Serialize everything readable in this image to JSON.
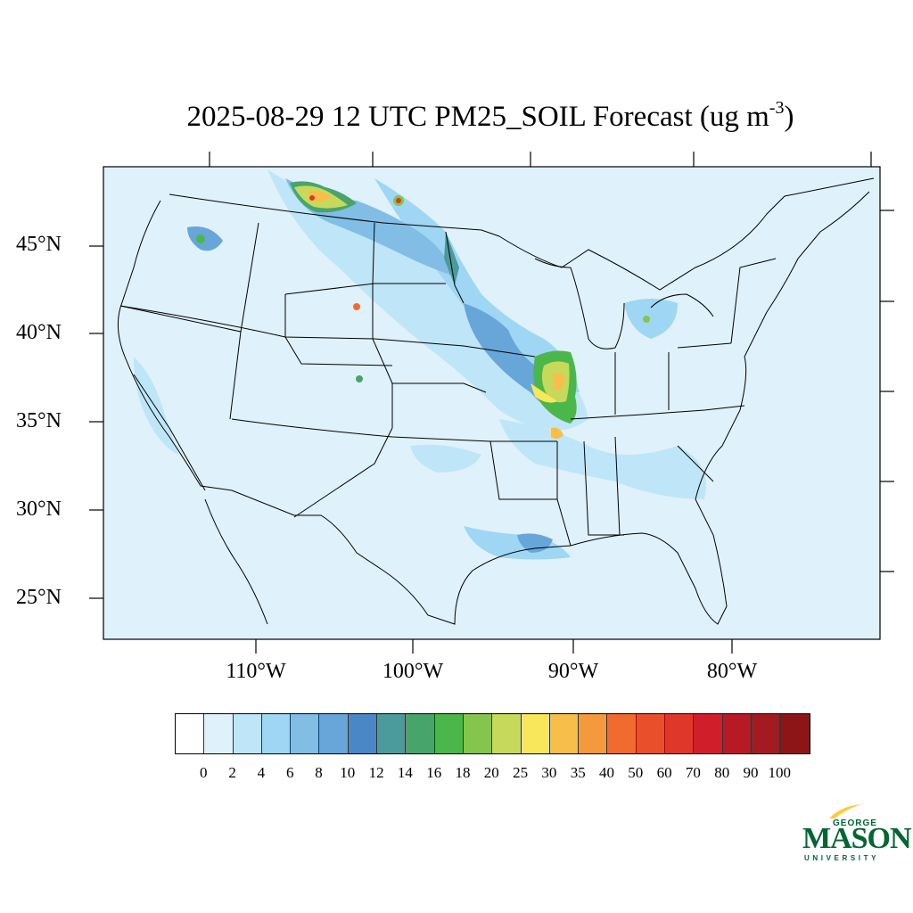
{
  "title": {
    "main": "2025-08-29 12 UTC PM25_SOIL Forecast (ug m",
    "sup": "-3",
    "close": ")"
  },
  "map": {
    "background_color": "#dff1fb",
    "lat_labels": [
      "45°N",
      "40°N",
      "35°N",
      "30°N",
      "25°N"
    ],
    "lon_labels": [
      "110°W",
      "100°W",
      "90°W",
      "80°W"
    ]
  },
  "colorbar": {
    "colors": [
      "#ffffff",
      "#dff1fb",
      "#bfe6f8",
      "#9fd6f4",
      "#82bde6",
      "#68a6da",
      "#4a87c6",
      "#4b9a9c",
      "#47a56c",
      "#4bb74b",
      "#85c54e",
      "#c7d95a",
      "#f8e75b",
      "#f7bf4a",
      "#f59a3c",
      "#f06b2d",
      "#ea4f2c",
      "#e0372b",
      "#d01e2a",
      "#b81a25",
      "#a31a21",
      "#8d1518"
    ],
    "labels": [
      "0",
      "2",
      "4",
      "6",
      "8",
      "10",
      "12",
      "14",
      "16",
      "18",
      "20",
      "25",
      "30",
      "35",
      "40",
      "50",
      "60",
      "70",
      "80",
      "90",
      "100"
    ]
  },
  "logo": {
    "george": "GEORGE",
    "mason": "MASON",
    "university": "UNIVERSITY"
  }
}
